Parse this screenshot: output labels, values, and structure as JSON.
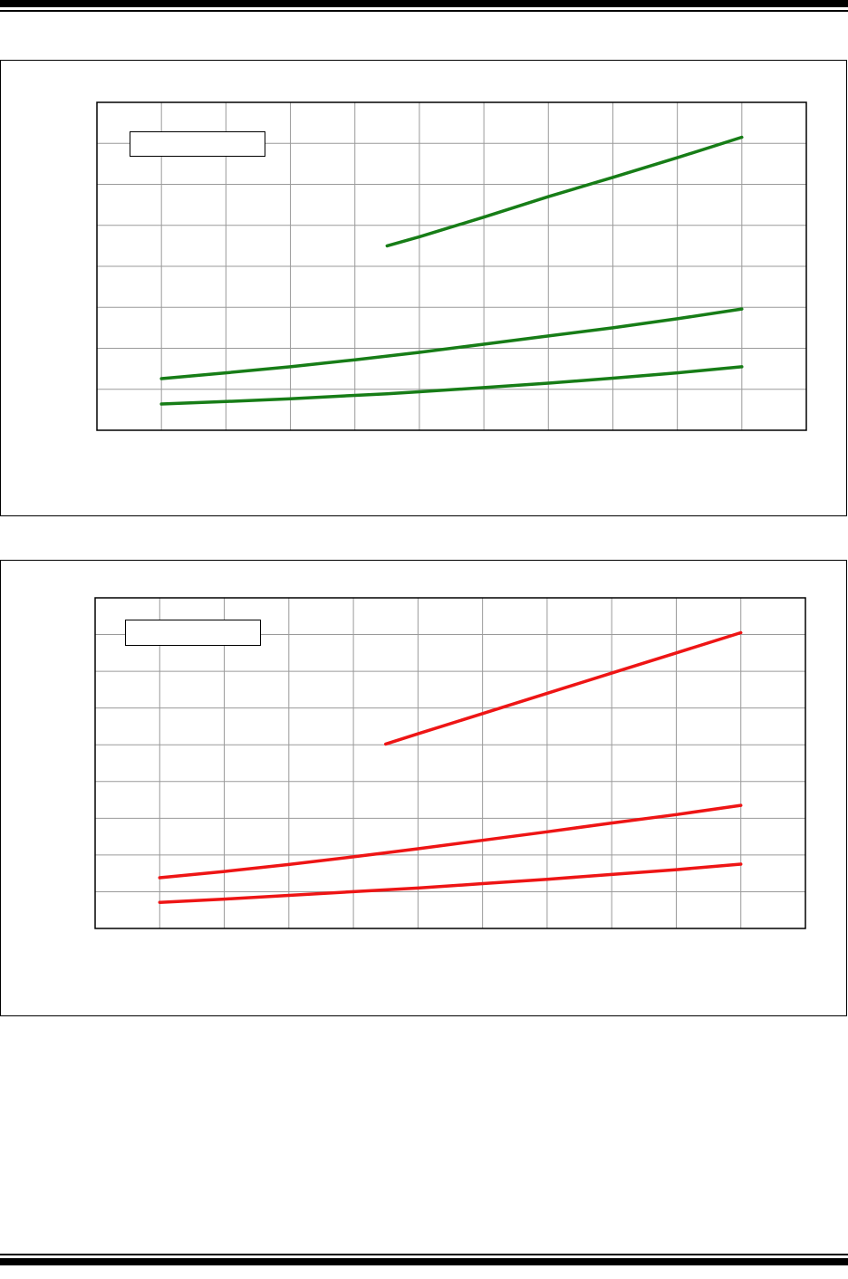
{
  "chart_data": [
    {
      "type": "line",
      "x": [
        1,
        2,
        3,
        4,
        4.5,
        5,
        6,
        7,
        8,
        9,
        10
      ],
      "xlim": [
        0,
        11
      ],
      "xticks": [
        0,
        1,
        2,
        3,
        4,
        5,
        6,
        7,
        8,
        9,
        10,
        11
      ],
      "ylim": [
        0,
        8
      ],
      "yticks": [
        0,
        1,
        2,
        3,
        4,
        5,
        6,
        7,
        8
      ],
      "grid": true,
      "series": [
        {
          "color": "#177d17",
          "values": [
            null,
            null,
            null,
            null,
            4.5,
            4.72,
            5.2,
            5.7,
            6.17,
            6.65,
            7.15
          ]
        },
        {
          "color": "#177d17",
          "values": [
            1.26,
            1.4,
            1.55,
            1.72,
            1.81,
            1.9,
            2.1,
            2.3,
            2.5,
            2.72,
            2.96
          ]
        },
        {
          "color": "#177d17",
          "values": [
            0.64,
            0.7,
            0.77,
            0.85,
            0.89,
            0.94,
            1.04,
            1.15,
            1.27,
            1.4,
            1.55
          ]
        }
      ]
    },
    {
      "type": "line",
      "x": [
        1,
        2,
        3,
        4,
        4.5,
        5,
        6,
        7,
        8,
        9,
        10
      ],
      "xlim": [
        0,
        11
      ],
      "xticks": [
        0,
        1,
        2,
        3,
        4,
        5,
        6,
        7,
        8,
        9,
        10,
        11
      ],
      "ylim": [
        0,
        9
      ],
      "yticks": [
        0,
        1,
        2,
        3,
        4,
        5,
        6,
        7,
        8,
        9
      ],
      "grid": true,
      "series": [
        {
          "color": "#ee1515",
          "values": [
            null,
            null,
            null,
            null,
            5.02,
            5.3,
            5.85,
            6.4,
            6.95,
            7.5,
            8.05
          ]
        },
        {
          "color": "#ee1515",
          "values": [
            1.38,
            1.55,
            1.74,
            1.95,
            2.06,
            2.17,
            2.4,
            2.63,
            2.87,
            3.1,
            3.35
          ]
        },
        {
          "color": "#ee1515",
          "values": [
            0.71,
            0.8,
            0.9,
            1.0,
            1.05,
            1.1,
            1.22,
            1.34,
            1.47,
            1.6,
            1.75
          ]
        }
      ]
    }
  ]
}
